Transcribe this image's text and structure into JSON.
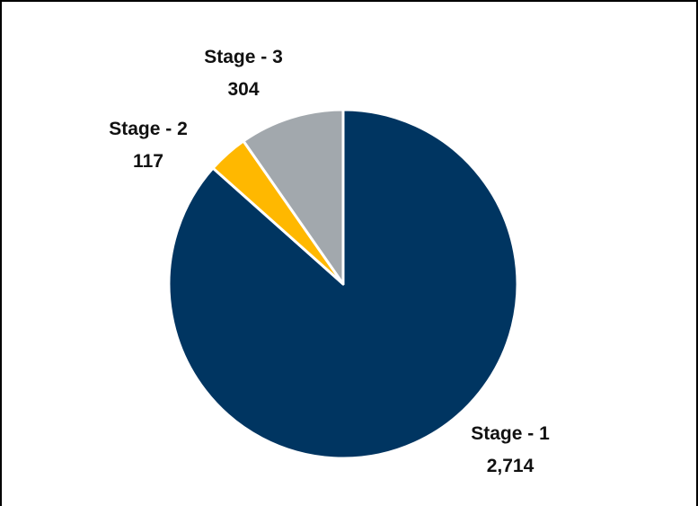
{
  "chart_data": {
    "type": "pie",
    "categories": [
      "Stage - 1",
      "Stage - 2",
      "Stage - 3"
    ],
    "values": [
      2714,
      117,
      304
    ],
    "value_labels": [
      "2,714",
      "117",
      "304"
    ],
    "colors": [
      "#003561",
      "#FFB800",
      "#A2A8AD"
    ],
    "title": "",
    "legend": "none",
    "start_angle": "12 o'clock",
    "direction": "clockwise"
  }
}
